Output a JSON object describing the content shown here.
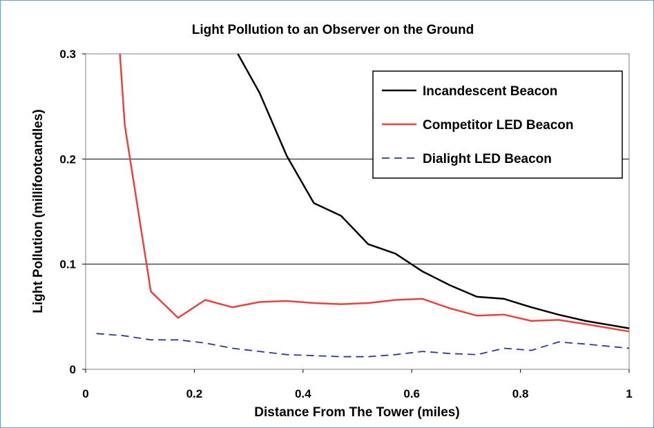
{
  "chart_data": {
    "type": "line",
    "title": "Light Pollution to an Observer on the Ground",
    "xlabel": "Distance From The Tower (miles)",
    "ylabel": "Light Pollution (millifootcandles)",
    "xlim": [
      0,
      1
    ],
    "ylim": [
      0,
      0.3
    ],
    "xticks": [
      "0",
      "0.2",
      "0.4",
      "0.6",
      "0.8",
      "1"
    ],
    "yticks": [
      "0",
      "0.1",
      "0.2",
      "0.3"
    ],
    "grid": "horizontal",
    "legend_position": "top-right",
    "series": [
      {
        "name": "Incandescent Beacon",
        "color": "#000000",
        "dash": "solid",
        "points": [
          [
            0.28,
            0.3
          ],
          [
            0.32,
            0.263
          ],
          [
            0.37,
            0.203
          ],
          [
            0.42,
            0.158
          ],
          [
            0.47,
            0.146
          ],
          [
            0.52,
            0.119
          ],
          [
            0.57,
            0.11
          ],
          [
            0.62,
            0.093
          ],
          [
            0.67,
            0.08
          ],
          [
            0.72,
            0.069
          ],
          [
            0.77,
            0.067
          ],
          [
            0.82,
            0.059
          ],
          [
            0.87,
            0.052
          ],
          [
            0.92,
            0.046
          ],
          [
            1.0,
            0.039
          ]
        ]
      },
      {
        "name": "Competitor LED Beacon",
        "color": "#e8423f",
        "dash": "solid",
        "points": [
          [
            0.063,
            0.3
          ],
          [
            0.072,
            0.232
          ],
          [
            0.12,
            0.074
          ],
          [
            0.17,
            0.049
          ],
          [
            0.22,
            0.066
          ],
          [
            0.27,
            0.059
          ],
          [
            0.32,
            0.064
          ],
          [
            0.37,
            0.065
          ],
          [
            0.42,
            0.063
          ],
          [
            0.47,
            0.062
          ],
          [
            0.52,
            0.063
          ],
          [
            0.57,
            0.066
          ],
          [
            0.62,
            0.067
          ],
          [
            0.67,
            0.058
          ],
          [
            0.72,
            0.051
          ],
          [
            0.77,
            0.052
          ],
          [
            0.82,
            0.046
          ],
          [
            0.87,
            0.047
          ],
          [
            0.92,
            0.043
          ],
          [
            1.0,
            0.036
          ]
        ]
      },
      {
        "name": "Dialight LED Beacon",
        "color": "#2b3990",
        "dash": "dashed",
        "points": [
          [
            0.02,
            0.034
          ],
          [
            0.07,
            0.032
          ],
          [
            0.12,
            0.028
          ],
          [
            0.17,
            0.028
          ],
          [
            0.22,
            0.025
          ],
          [
            0.27,
            0.02
          ],
          [
            0.32,
            0.017
          ],
          [
            0.37,
            0.014
          ],
          [
            0.42,
            0.013
          ],
          [
            0.47,
            0.012
          ],
          [
            0.52,
            0.012
          ],
          [
            0.57,
            0.014
          ],
          [
            0.62,
            0.017
          ],
          [
            0.67,
            0.015
          ],
          [
            0.72,
            0.014
          ],
          [
            0.77,
            0.02
          ],
          [
            0.82,
            0.018
          ],
          [
            0.87,
            0.026
          ],
          [
            0.92,
            0.024
          ],
          [
            1.0,
            0.02
          ]
        ]
      }
    ]
  }
}
